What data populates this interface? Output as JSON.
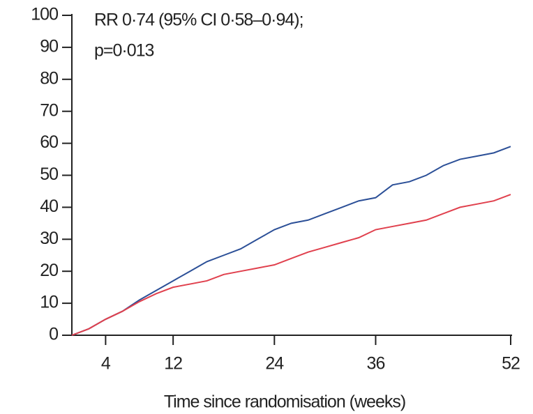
{
  "chart_data": {
    "type": "line",
    "annotations": [
      "RR 0·74 (95% CI 0·58–0·94);",
      "p=0·013"
    ],
    "x_label": "Time since randomisation (weeks)",
    "x": [
      0,
      2,
      4,
      6,
      8,
      10,
      12,
      14,
      16,
      18,
      20,
      22,
      24,
      26,
      28,
      30,
      32,
      34,
      36,
      38,
      40,
      42,
      44,
      46,
      48,
      50,
      52
    ],
    "series": [
      {
        "color": "#2b4f97",
        "values": [
          0,
          2,
          5,
          7.5,
          11,
          14,
          17,
          20,
          23,
          25,
          27,
          30,
          33,
          35,
          36,
          38,
          40,
          42,
          43,
          47,
          48,
          50,
          53,
          55,
          56,
          57,
          59
        ]
      },
      {
        "color": "#e0404d",
        "values": [
          0,
          2,
          5,
          7.5,
          10.5,
          13,
          15,
          16,
          17,
          19,
          20,
          21,
          22,
          24,
          26,
          27.5,
          29,
          30.5,
          33,
          34,
          35,
          36,
          38,
          40,
          41,
          42,
          44
        ]
      }
    ],
    "xlim": [
      0,
      52
    ],
    "xticks": [
      4,
      12,
      24,
      36,
      52
    ],
    "ylim": [
      0,
      100
    ],
    "yticks": [
      0,
      10,
      20,
      30,
      40,
      50,
      60,
      70,
      80,
      90,
      100
    ]
  }
}
